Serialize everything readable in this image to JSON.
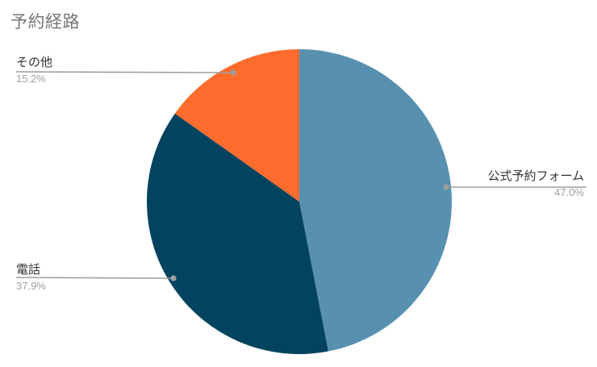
{
  "title": "予約経路",
  "chart_data": {
    "type": "pie",
    "title": "予約経路",
    "categories": [
      "公式予約フォーム",
      "電話",
      "その他"
    ],
    "values": [
      47.0,
      37.9,
      15.2
    ],
    "slices": [
      {
        "label": "公式予約フォーム",
        "value_pct": 47.0,
        "pct_label": "47.0%",
        "color": "#5891b0"
      },
      {
        "label": "電話",
        "value_pct": 37.9,
        "pct_label": "37.9%",
        "color": "#02445f"
      },
      {
        "label": "その他",
        "value_pct": 15.2,
        "pct_label": "15.2%",
        "color": "#fd6c2d"
      }
    ],
    "start_angle_deg": 0,
    "direction": "clockwise",
    "labels_style": "outside-callouts",
    "legend_position": "none",
    "background": "#ffffff"
  },
  "colors": {
    "title_text": "#757575",
    "label_text": "#333333",
    "pct_text": "#9e9e9e",
    "callout_line": "#9e9e9e",
    "callout_dot": "#9e9e9e",
    "background": "#ffffff"
  }
}
